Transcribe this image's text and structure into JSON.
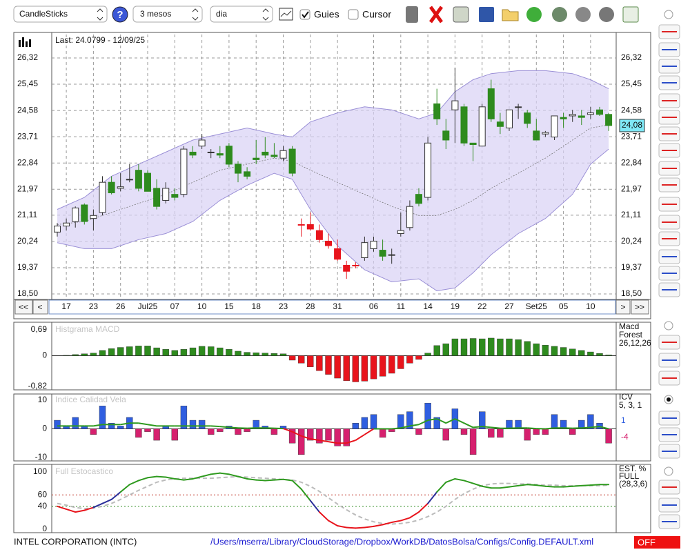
{
  "toolbar": {
    "chart_type": "CandleSticks",
    "help": "?",
    "period": "3 mesos",
    "interval": "dia",
    "guides": "Guies",
    "cursor": "Cursor"
  },
  "navigation": {
    "first": "<<",
    "prev": "<",
    "next": ">",
    "last": ">>"
  },
  "footer": {
    "company": "INTEL CORPORATION (INTC)",
    "path": "/Users/mserra/Library/CloudStorage/Dropbox/WorkDB/DatosBolsa/Configs/Config.DEFAULT.xml",
    "status": "OFF"
  },
  "chart_data": [
    {
      "type": "candlestick",
      "annotation": "Last: 24.0799 - 12/09/25",
      "categories": [
        null,
        "17",
        null,
        null,
        "23",
        null,
        null,
        "26",
        null,
        null,
        "Jul25",
        null,
        null,
        "07",
        null,
        null,
        "10",
        null,
        null,
        "15",
        null,
        null,
        "18",
        null,
        null,
        "23",
        null,
        null,
        "28",
        null,
        null,
        "31",
        null,
        null,
        null,
        "06",
        null,
        null,
        "11",
        null,
        null,
        "14",
        null,
        null,
        "19",
        null,
        null,
        "22",
        null,
        null,
        "27",
        null,
        null,
        "Set25",
        null,
        null,
        "05",
        null,
        null,
        "10",
        null,
        null
      ],
      "open": [
        20.55,
        20.75,
        20.9,
        21.45,
        21.0,
        21.2,
        22.2,
        22.0,
        22.3,
        22.6,
        22.5,
        22.0,
        21.6,
        21.8,
        21.8,
        23.2,
        23.4,
        23.2,
        23.15,
        23.4,
        22.8,
        22.55,
        23.0,
        23.2,
        23.1,
        23.0,
        23.3,
        20.8,
        20.8,
        20.6,
        20.25,
        20.0,
        19.45,
        19.45,
        19.7,
        20.0,
        19.95,
        19.8,
        20.5,
        20.7,
        21.8,
        21.7,
        24.8,
        23.9,
        24.6,
        24.7,
        23.5,
        23.4,
        25.3,
        24.2,
        24.0,
        24.7,
        24.5,
        23.9,
        23.8,
        23.7,
        24.35,
        24.4,
        24.4,
        24.45,
        24.6,
        24.45
      ],
      "high": [
        20.85,
        21.0,
        21.4,
        21.5,
        21.3,
        22.4,
        22.4,
        22.5,
        22.8,
        22.8,
        22.6,
        22.3,
        22.2,
        22.0,
        23.4,
        23.4,
        23.8,
        23.3,
        23.4,
        23.5,
        22.9,
        22.7,
        23.6,
        23.7,
        23.5,
        23.4,
        23.4,
        21.0,
        21.2,
        20.8,
        20.5,
        20.3,
        19.6,
        19.55,
        20.4,
        20.4,
        20.3,
        20.0,
        21.2,
        21.6,
        22.0,
        23.7,
        25.3,
        24.3,
        26.0,
        24.8,
        23.5,
        24.8,
        25.6,
        24.5,
        24.6,
        24.8,
        24.6,
        24.3,
        23.9,
        24.4,
        24.5,
        24.6,
        24.6,
        24.7,
        24.7,
        24.5
      ],
      "low": [
        20.4,
        20.6,
        20.7,
        20.8,
        20.6,
        21.1,
        21.8,
        21.9,
        22.2,
        21.9,
        21.9,
        21.3,
        21.5,
        21.6,
        21.7,
        23.0,
        23.3,
        23.0,
        23.0,
        22.7,
        22.2,
        22.3,
        22.8,
        23.0,
        23.0,
        22.9,
        22.4,
        20.4,
        20.6,
        20.2,
        20.0,
        19.6,
        19.0,
        19.35,
        19.6,
        19.9,
        19.6,
        19.5,
        20.4,
        20.6,
        21.4,
        21.6,
        24.1,
        23.3,
        23.5,
        23.4,
        22.9,
        23.4,
        24.2,
        23.8,
        23.9,
        24.3,
        24.0,
        23.6,
        23.7,
        23.6,
        24.0,
        24.2,
        24.1,
        24.3,
        24.4,
        23.9
      ],
      "close": [
        20.75,
        20.85,
        21.35,
        20.9,
        21.1,
        22.2,
        21.85,
        22.05,
        22.3,
        22.0,
        21.9,
        21.4,
        22.0,
        21.7,
        23.3,
        23.1,
        23.6,
        23.2,
        23.1,
        22.8,
        22.5,
        22.4,
        22.95,
        23.1,
        23.05,
        23.25,
        22.5,
        20.8,
        20.65,
        20.3,
        20.1,
        19.65,
        19.25,
        19.45,
        20.2,
        20.25,
        19.75,
        19.8,
        20.6,
        21.4,
        21.5,
        23.5,
        24.3,
        23.6,
        24.9,
        23.5,
        23.45,
        24.7,
        24.3,
        24.05,
        24.6,
        24.7,
        24.15,
        23.6,
        23.85,
        24.4,
        24.3,
        24.45,
        24.35,
        24.5,
        24.45,
        24.08
      ],
      "colors": [
        "#2e8b1e",
        "#2e8b1e",
        "#2e8b1e",
        "#2e8b1e",
        "#2e8b1e",
        "#2e8b1e",
        "#2e8b1e",
        "#2e8b1e",
        "#2e8b1e",
        "#2e8b1e",
        "#2e8b1e",
        "#2e8b1e",
        "#2e8b1e",
        "#2e8b1e",
        "#2e8b1e",
        "#2e8b1e",
        "#2e8b1e",
        "#2e8b1e",
        "#2e8b1e",
        "#2e8b1e",
        "#2e8b1e",
        "#2e8b1e",
        "#2e8b1e",
        "#2e8b1e",
        "#2e8b1e",
        "#2e8b1e",
        "#2e8b1e",
        "#e8141c",
        "#e8141c",
        "#e8141c",
        "#e8141c",
        "#e8141c",
        "#e8141c",
        "#e8141c",
        "#2e8b1e",
        "#2e8b1e",
        "#2e8b1e",
        "#2e8b1e",
        "#2e8b1e",
        "#2e8b1e",
        "#2e8b1e",
        "#2e8b1e",
        "#2e8b1e",
        "#2e8b1e",
        "#2e8b1e",
        "#2e8b1e",
        "#2e8b1e",
        "#2e8b1e",
        "#2e8b1e",
        "#2e8b1e",
        "#2e8b1e",
        "#2e8b1e",
        "#2e8b1e",
        "#2e8b1e",
        "#2e8b1e",
        "#2e8b1e",
        "#2e8b1e",
        "#2e8b1e",
        "#2e8b1e",
        "#2e8b1e",
        "#2e8b1e",
        "#2e8b1e"
      ],
      "up_fill": "#ffffff",
      "bands": {
        "x": [
          0,
          3,
          6,
          9,
          12,
          15,
          18,
          21,
          24,
          26,
          28,
          31,
          34,
          37,
          40,
          42,
          44,
          46,
          48,
          51,
          54,
          57,
          59,
          61
        ],
        "upper": [
          21.3,
          21.7,
          22.4,
          22.8,
          23.2,
          23.6,
          23.8,
          24.0,
          23.8,
          23.7,
          24.2,
          24.5,
          24.7,
          24.6,
          24.3,
          24.5,
          25.2,
          25.6,
          25.8,
          25.9,
          25.9,
          25.8,
          25.6,
          25.3
        ],
        "middle": [
          20.8,
          20.9,
          21.2,
          21.5,
          21.8,
          22.2,
          22.6,
          22.8,
          23.0,
          22.9,
          22.6,
          22.2,
          21.8,
          21.4,
          21.1,
          21.1,
          21.3,
          21.6,
          22.0,
          22.5,
          23.0,
          23.6,
          24.0,
          24.1
        ],
        "lower": [
          20.2,
          20.0,
          20.0,
          20.3,
          20.5,
          20.9,
          21.6,
          22.1,
          22.5,
          22.3,
          21.3,
          20.1,
          19.3,
          18.9,
          19.0,
          18.6,
          18.7,
          19.2,
          19.8,
          20.5,
          21.0,
          21.8,
          22.8,
          23.3
        ],
        "color": "#d9d2f5"
      },
      "current": {
        "value": 24.08,
        "label": "24,08"
      },
      "ylim": [
        18.5,
        26.32
      ],
      "yticks": [
        {
          "value": 26.32,
          "label": "26,32"
        },
        {
          "value": 25.45,
          "label": "25,45"
        },
        {
          "value": 24.58,
          "label": "24,58"
        },
        {
          "value": 23.71,
          "label": "23,71"
        },
        {
          "value": 22.84,
          "label": "22,84"
        },
        {
          "value": 21.97,
          "label": "21,97"
        },
        {
          "value": 21.11,
          "label": "21,11"
        },
        {
          "value": 20.24,
          "label": "20,24"
        },
        {
          "value": 19.37,
          "label": "19,37"
        },
        {
          "value": 18.5,
          "label": "18,50"
        }
      ],
      "grid": true
    },
    {
      "type": "bar",
      "title": "Histgrama MACD",
      "legend": [
        "Macd",
        "Forest",
        "26,12,26"
      ],
      "values": [
        0,
        0.01,
        0.03,
        0.05,
        0.07,
        0.14,
        0.19,
        0.22,
        0.24,
        0.26,
        0.26,
        0.21,
        0.17,
        0.14,
        0.17,
        0.21,
        0.25,
        0.24,
        0.21,
        0.17,
        0.12,
        0.09,
        0.08,
        0.07,
        0.06,
        0.05,
        -0.12,
        -0.2,
        -0.3,
        -0.4,
        -0.5,
        -0.6,
        -0.67,
        -0.7,
        -0.68,
        -0.62,
        -0.55,
        -0.47,
        -0.35,
        -0.2,
        -0.1,
        0.07,
        0.27,
        0.32,
        0.45,
        0.45,
        0.46,
        0.45,
        0.47,
        0.45,
        0.45,
        0.43,
        0.38,
        0.32,
        0.28,
        0.25,
        0.22,
        0.18,
        0.14,
        0.1,
        0.06,
        0.02
      ],
      "color": "#2e8b1e",
      "negative_color": "#e8141c",
      "ylim": [
        -0.82,
        0.69
      ],
      "yticks": [
        {
          "value": 0.69,
          "label": "0,69"
        },
        0,
        {
          "value": -0.82,
          "label": "-0,82"
        }
      ]
    },
    {
      "type": "bar",
      "title": "Indice Calidad Vela",
      "legend": [
        "ICV",
        "5, 3, 1"
      ],
      "readouts": [
        1,
        -4
      ],
      "series": [
        {
          "values": [
            3,
            1,
            4,
            1,
            -2,
            8,
            2,
            1,
            4,
            -3,
            -1,
            -4,
            1,
            -4,
            8,
            3,
            3,
            -2,
            -1,
            1,
            -2,
            -1,
            3,
            1,
            -2,
            1,
            -5,
            -9,
            -4,
            -5,
            -4,
            -6,
            -6,
            2,
            4,
            5,
            -3,
            -1,
            5,
            6,
            -2,
            9,
            4,
            -4,
            7,
            -2,
            -9,
            6,
            -3,
            -3,
            3,
            3,
            -4,
            -2,
            -2,
            5,
            3,
            -2,
            3,
            5,
            2,
            -5
          ],
          "color": "#2f5ee0",
          "negative_color": "#d6206e"
        },
        {
          "values": [
            1,
            1,
            1,
            1,
            1,
            1.5,
            1.5,
            1.5,
            2,
            2,
            1.5,
            1,
            1,
            1,
            1,
            1,
            1,
            1,
            0.8,
            0.5,
            0.3,
            0.2,
            0.3,
            0.3,
            0.2,
            0.1,
            -1,
            -2.5,
            -3.5,
            -4,
            -4.5,
            -5,
            -5,
            -4,
            -2,
            0,
            0,
            0,
            0.3,
            1,
            1.5,
            3,
            3.5,
            2,
            3.5,
            2,
            0.5,
            0.8,
            0.5,
            0.2,
            0.2,
            0.3,
            0.3,
            0.1,
            0,
            0.3,
            0.3,
            0.2,
            0.3,
            0.5,
            0.8,
            0
          ],
          "color": "#2e9a1e",
          "negative_color": "#e8141c"
        }
      ],
      "readout_colors": [
        "#2f5ee0",
        "#d6206e"
      ],
      "ylim": [
        -10,
        10
      ],
      "yticks": [
        10,
        0,
        -10
      ]
    },
    {
      "type": "line",
      "title": "Full Estocastico",
      "legend": [
        "EST. %",
        "FULL",
        "(28,3,6)"
      ],
      "series": [
        {
          "values": [
            40,
            35,
            30,
            33,
            38,
            45,
            52,
            65,
            78,
            85,
            90,
            92,
            91,
            88,
            86,
            88,
            92,
            96,
            98,
            96,
            92,
            88,
            86,
            85,
            86,
            87,
            85,
            70,
            50,
            30,
            15,
            6,
            3,
            2,
            3,
            5,
            8,
            12,
            15,
            20,
            30,
            45,
            65,
            82,
            88,
            85,
            80,
            75,
            72,
            72,
            74,
            76,
            78,
            77,
            75,
            74,
            74,
            75,
            76,
            77,
            78,
            78
          ],
          "colors": [
            "#e8141c",
            "#2b2f9a",
            "#2e9a1e"
          ]
        },
        {
          "values": [
            45,
            42,
            38,
            36,
            37,
            40,
            45,
            52,
            60,
            68,
            75,
            82,
            86,
            88,
            89,
            89,
            89,
            89,
            90,
            91,
            92,
            91,
            90,
            89,
            88,
            87,
            86,
            82,
            75,
            66,
            55,
            44,
            34,
            25,
            18,
            13,
            10,
            9,
            10,
            12,
            16,
            22,
            30,
            40,
            52,
            62,
            70,
            76,
            79,
            80,
            80,
            79,
            79,
            78,
            77,
            77,
            76,
            76,
            76,
            76,
            76,
            77
          ],
          "color": "#bbbbbb",
          "dashed": true
        }
      ],
      "ylim": [
        0,
        100
      ],
      "yticks": [
        100,
        60,
        40,
        0
      ],
      "grid_colors": [
        null,
        "#c0392b",
        "#2e8b1e",
        null
      ]
    }
  ]
}
